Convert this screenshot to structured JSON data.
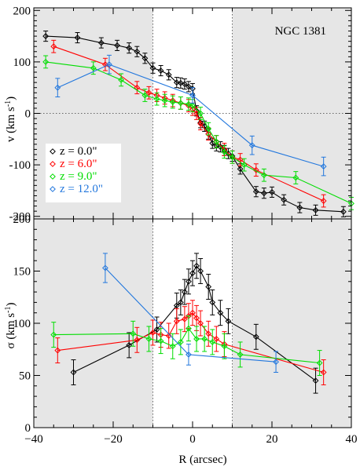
{
  "chart_data": [
    {
      "type": "line",
      "panel": "top",
      "title": "NGC 1381",
      "ylabel_main": "v (km s",
      "ylabel_sup": "-1",
      "ylabel_end": ")",
      "xlim": [
        -40,
        40
      ],
      "ylim": [
        -205,
        205
      ],
      "yticks": [
        -200,
        -100,
        0,
        100,
        200
      ],
      "yticklabels": [
        "-200",
        "-100",
        "0",
        "100",
        "200"
      ],
      "shaded_regions": [
        [
          -40,
          -10
        ],
        [
          10,
          40
        ]
      ],
      "dotted_vlines": [
        -10,
        10
      ],
      "dotted_hlines": [
        0
      ],
      "legend_position": "left",
      "series": [
        {
          "name": "z = 0.0\"",
          "color": "#000000",
          "x": [
            -37,
            -29,
            -23,
            -19,
            -16,
            -14,
            -12,
            -10,
            -8,
            -6,
            -4,
            -3,
            -2,
            -1,
            0,
            1,
            2,
            3,
            4,
            5,
            6,
            7,
            8,
            9,
            10,
            12,
            16,
            18,
            20,
            23,
            27,
            31,
            38
          ],
          "y": [
            150,
            147,
            137,
            132,
            127,
            120,
            107,
            88,
            83,
            75,
            60,
            59,
            57,
            52,
            48,
            5,
            -18,
            -25,
            -40,
            -58,
            -63,
            -65,
            -72,
            -78,
            -83,
            -108,
            -152,
            -155,
            -153,
            -168,
            -183,
            -188,
            -191
          ],
          "err": [
            10,
            10,
            10,
            10,
            10,
            10,
            10,
            10,
            10,
            10,
            10,
            10,
            10,
            10,
            10,
            10,
            10,
            10,
            10,
            10,
            10,
            10,
            10,
            10,
            10,
            10,
            10,
            10,
            10,
            10,
            10,
            10,
            10
          ]
        },
        {
          "name": "z = 6.0\"",
          "color": "#ff0000",
          "x": [
            -35,
            -22,
            -14,
            -11,
            -9,
            -7,
            -5,
            -3,
            -1,
            0,
            1,
            2,
            4,
            6,
            8,
            10,
            12,
            16,
            33
          ],
          "y": [
            130,
            95,
            50,
            40,
            35,
            30,
            25,
            20,
            15,
            8,
            0,
            -20,
            -40,
            -55,
            -70,
            -85,
            -90,
            -110,
            -170
          ],
          "err": [
            12,
            12,
            12,
            12,
            12,
            12,
            12,
            12,
            12,
            12,
            12,
            12,
            12,
            12,
            12,
            12,
            12,
            12,
            12
          ]
        },
        {
          "name": "z = 9.0\"",
          "color": "#00dd00",
          "x": [
            -37,
            -25,
            -18,
            -12,
            -9,
            -7,
            -5,
            -3,
            -1,
            0,
            2,
            4,
            6,
            8,
            10,
            13,
            18,
            26,
            40
          ],
          "y": [
            100,
            88,
            65,
            35,
            28,
            25,
            22,
            20,
            18,
            15,
            0,
            -30,
            -55,
            -75,
            -85,
            -100,
            -120,
            -125,
            -175
          ],
          "err": [
            12,
            12,
            12,
            12,
            12,
            12,
            12,
            12,
            12,
            12,
            12,
            12,
            12,
            12,
            12,
            12,
            12,
            12,
            12
          ]
        },
        {
          "name": "z = 12.0\"",
          "color": "#2277dd",
          "x": [
            -34,
            -21,
            0,
            15,
            33
          ],
          "y": [
            50,
            95,
            35,
            -62,
            -103
          ],
          "err": [
            18,
            18,
            15,
            18,
            18
          ]
        }
      ]
    },
    {
      "type": "line",
      "panel": "bottom",
      "ylabel_main": "σ (km s",
      "ylabel_sup": "-1",
      "ylabel_end": ")",
      "xlabel": "R (arcsec)",
      "xlim": [
        -40,
        40
      ],
      "ylim": [
        0,
        200
      ],
      "xticks": [
        -40,
        -20,
        0,
        20,
        40
      ],
      "xticklabels": [
        "−40",
        "−20",
        "0",
        "20",
        "40"
      ],
      "yticks": [
        0,
        50,
        100,
        150,
        200
      ],
      "yticklabels": [
        "0",
        "50",
        "100",
        "150",
        "200"
      ],
      "shaded_regions": [
        [
          -40,
          -10
        ],
        [
          10,
          40
        ]
      ],
      "dotted_vlines": [
        -10,
        10
      ],
      "series": [
        {
          "name": "z = 0.0\"",
          "color": "#000000",
          "x": [
            -30,
            -16,
            -9,
            -4,
            -3,
            -2,
            -1,
            0,
            1,
            2,
            4,
            5,
            7,
            9,
            16,
            31
          ],
          "y": [
            53,
            79,
            94,
            117,
            120,
            130,
            140,
            148,
            155,
            150,
            135,
            120,
            110,
            102,
            87,
            45
          ],
          "err": [
            12,
            12,
            12,
            12,
            12,
            12,
            12,
            12,
            12,
            12,
            12,
            12,
            12,
            12,
            12,
            12
          ]
        },
        {
          "name": "z = 6.0\"",
          "color": "#ff0000",
          "x": [
            -34,
            -14,
            -10,
            -8,
            -6,
            -4,
            -2,
            -1,
            0,
            1,
            2,
            4,
            6,
            8,
            33
          ],
          "y": [
            74,
            84,
            91,
            89,
            88,
            102,
            104,
            107,
            110,
            105,
            100,
            90,
            85,
            80,
            53
          ],
          "err": [
            12,
            12,
            12,
            12,
            12,
            12,
            12,
            12,
            12,
            12,
            12,
            12,
            12,
            12,
            12
          ]
        },
        {
          "name": "z = 9.0\"",
          "color": "#00dd00",
          "x": [
            -35,
            -15,
            -11,
            -8,
            -5,
            -3,
            -1,
            1,
            3,
            5,
            8,
            12,
            32
          ],
          "y": [
            89,
            90,
            85,
            83,
            78,
            82,
            95,
            85,
            85,
            82,
            78,
            70,
            62
          ],
          "err": [
            12,
            12,
            12,
            12,
            12,
            12,
            12,
            12,
            12,
            12,
            12,
            12,
            12
          ]
        },
        {
          "name": "z = 12.0\"",
          "color": "#2277dd",
          "x": [
            -22,
            -1,
            21
          ],
          "y": [
            153,
            70,
            63
          ],
          "err": [
            14,
            10,
            10
          ]
        }
      ]
    }
  ]
}
